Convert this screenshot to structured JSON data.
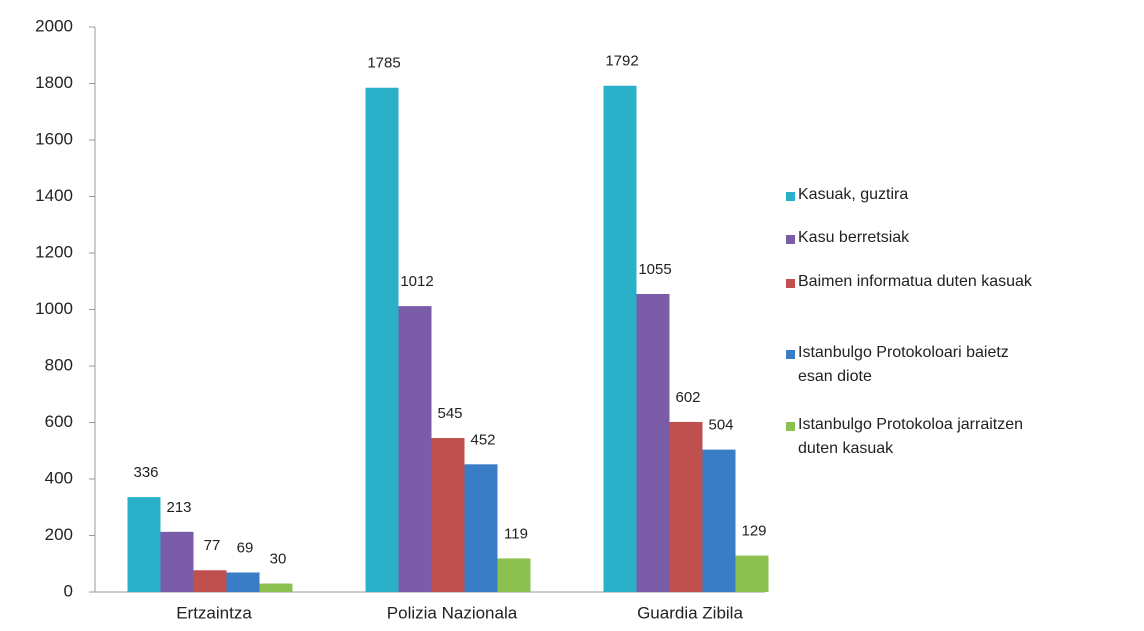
{
  "chart_data": {
    "type": "bar",
    "categories": [
      "Ertzaintza",
      "Polizia Nazionala",
      "Guardia Zibila"
    ],
    "series": [
      {
        "name": "Kasuak, guztira",
        "color": "#2ab0c9",
        "values": [
          336,
          1785,
          1792
        ]
      },
      {
        "name": "Kasu berretsiak",
        "color": "#7b5ca8",
        "values": [
          213,
          1012,
          1055
        ]
      },
      {
        "name": "Baimen informatua duten kasuak",
        "color": "#c0504d",
        "values": [
          77,
          545,
          602
        ]
      },
      {
        "name": "Istanbulgo Protokoloari baietz\nesan diote",
        "color": "#3b7cc6",
        "values": [
          69,
          452,
          504
        ]
      },
      {
        "name": "Istanbulgo Protokoloa jarraitzen\nduten kasuak",
        "color": "#8cc152",
        "values": [
          30,
          119,
          129
        ]
      }
    ],
    "ylim": [
      0,
      2000
    ],
    "yticks": [
      0,
      200,
      400,
      600,
      800,
      1000,
      1200,
      1400,
      1600,
      1800,
      2000
    ],
    "grid": false,
    "legend": "right"
  }
}
